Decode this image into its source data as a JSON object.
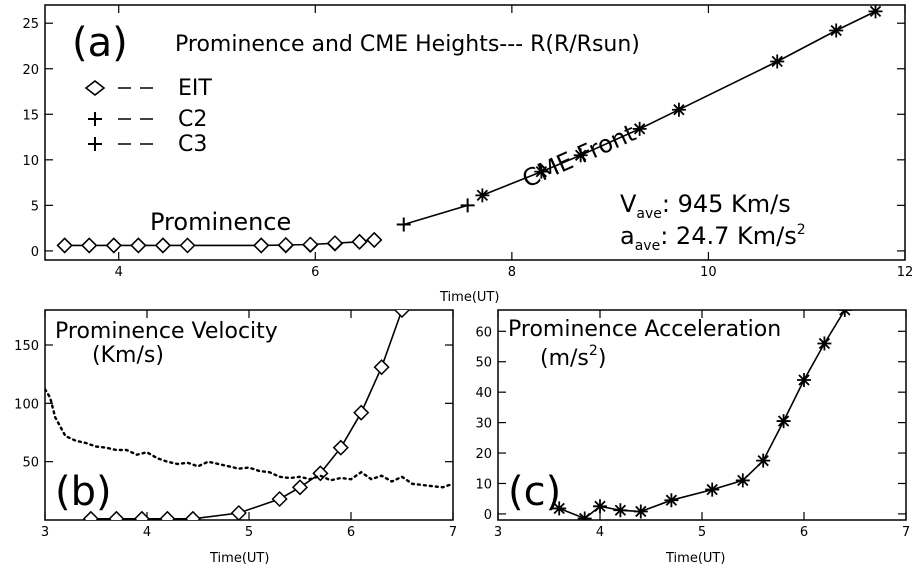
{
  "chart_data": [
    {
      "id": "a",
      "type": "line",
      "panel_label": "(a)",
      "title": "Prominence and CME Heights--- R(R/Rsun)",
      "xlabel": "Time(UT)",
      "ylabel": "",
      "xlim": [
        3.25,
        12
      ],
      "ylim": [
        -1,
        27
      ],
      "xticks": [
        "4",
        "6",
        "8",
        "10",
        "12"
      ],
      "yticks": [
        "0",
        "5",
        "10",
        "15",
        "20",
        "25"
      ],
      "legend": [
        {
          "symbol": "diamond",
          "label": "EIT"
        },
        {
          "symbol": "plus",
          "label": "C2"
        },
        {
          "symbol": "plus",
          "label": "C3"
        }
      ],
      "annotations": {
        "prominence": "Prominence",
        "cme_front": "CME Front",
        "v_ave": "V",
        "v_ave_sub": "ave",
        "v_ave_value": ": 945 Km/s",
        "a_ave": "a",
        "a_ave_sub": "ave",
        "a_ave_value": ": 24.7 Km/s",
        "a_ave_sup": "2"
      },
      "series": [
        {
          "name": "EIT",
          "marker": "diamond",
          "x": [
            3.45,
            3.7,
            3.95,
            4.2,
            4.45,
            5.45,
            5.7,
            5.95,
            6.2,
            6.45,
            6.6
          ],
          "y": [
            0.6,
            0.6,
            0.6,
            0.6,
            0.6,
            0.6,
            0.6,
            0.65,
            0.8,
            1.0,
            1.2
          ],
          "line": false
        },
        {
          "name": "EIT-2",
          "marker": "diamond",
          "x": [
            3.45,
            3.7,
            3.95,
            4.2,
            4.45,
            4.7,
            5.45,
            5.7,
            5.95,
            6.2,
            6.45,
            6.6
          ],
          "y": [
            0.6,
            0.6,
            0.6,
            0.6,
            0.6,
            0.6,
            0.6,
            0.65,
            0.7,
            0.85,
            1.0,
            1.2
          ],
          "line": true
        },
        {
          "name": "C2",
          "marker": "plus",
          "x": [
            6.9,
            7.55
          ],
          "y": [
            2.9,
            5.0
          ],
          "line": true
        },
        {
          "name": "C3",
          "marker": "asterisk",
          "x": [
            7.7,
            8.3,
            8.7,
            9.3,
            9.7,
            10.7,
            11.3,
            11.7
          ],
          "y": [
            6.1,
            8.7,
            10.5,
            13.4,
            15.5,
            20.8,
            24.2,
            26.3
          ],
          "line": true
        }
      ]
    },
    {
      "id": "b",
      "type": "line",
      "panel_label": "(b)",
      "title": "Prominence Velocity",
      "subtitle": "(Km/s)",
      "xlabel": "Time(UT)",
      "xlim": [
        3,
        7
      ],
      "ylim": [
        0,
        180
      ],
      "xticks": [
        "3",
        "4",
        "5",
        "6",
        "7"
      ],
      "yticks": [
        "50",
        "100",
        "150"
      ],
      "series": [
        {
          "name": "velocity",
          "marker": "diamond",
          "style": "solid",
          "x": [
            3.45,
            3.7,
            3.95,
            4.2,
            4.45,
            4.9,
            5.3,
            5.5,
            5.7,
            5.9,
            6.1,
            6.3,
            6.5
          ],
          "y": [
            1,
            1,
            1,
            1,
            1,
            6,
            18,
            28,
            40,
            62,
            92,
            131,
            180
          ]
        },
        {
          "name": "dotted",
          "marker": "none",
          "style": "dotted",
          "x": [
            3.0,
            3.05,
            3.1,
            3.2,
            3.3,
            3.4,
            3.5,
            3.6,
            3.7,
            3.8,
            3.9,
            4.0,
            4.1,
            4.2,
            4.3,
            4.4,
            4.5,
            4.6,
            4.7,
            4.8,
            4.9,
            5.0,
            5.1,
            5.2,
            5.3,
            5.4,
            5.5,
            5.6,
            5.7,
            5.8,
            5.9,
            6.0,
            6.1,
            6.2,
            6.3,
            6.4,
            6.5,
            6.6,
            6.7,
            6.8,
            6.9,
            7.0
          ],
          "y": [
            112,
            105,
            88,
            72,
            68,
            66,
            63,
            62,
            60,
            60,
            56,
            58,
            53,
            50,
            48,
            49,
            46,
            50,
            48,
            46,
            44,
            45,
            42,
            41,
            37,
            36,
            37,
            35,
            38,
            34,
            36,
            35,
            41,
            35,
            38,
            33,
            37,
            31,
            30,
            29,
            28,
            31
          ]
        }
      ]
    },
    {
      "id": "c",
      "type": "line",
      "panel_label": "(c)",
      "title": "Prominence Acceleration",
      "subtitle": "(m/s",
      "subtitle_sup": "2",
      "subtitle_end": ")",
      "xlabel": "Time(UT)",
      "xlim": [
        3,
        7
      ],
      "ylim": [
        -2,
        67
      ],
      "xticks": [
        "3",
        "4",
        "5",
        "6",
        "7"
      ],
      "yticks": [
        "0",
        "10",
        "20",
        "30",
        "40",
        "50",
        "60"
      ],
      "series": [
        {
          "name": "acceleration",
          "marker": "asterisk",
          "x": [
            3.6,
            3.85,
            4.0,
            4.2,
            4.4,
            4.7,
            5.1,
            5.4,
            5.6,
            5.8,
            6.0,
            6.2,
            6.4
          ],
          "y": [
            1.8,
            -1.5,
            2.5,
            1.2,
            0.8,
            4.5,
            8.0,
            11.0,
            17.5,
            30.5,
            44.0,
            56.0,
            67.0
          ]
        }
      ]
    }
  ]
}
